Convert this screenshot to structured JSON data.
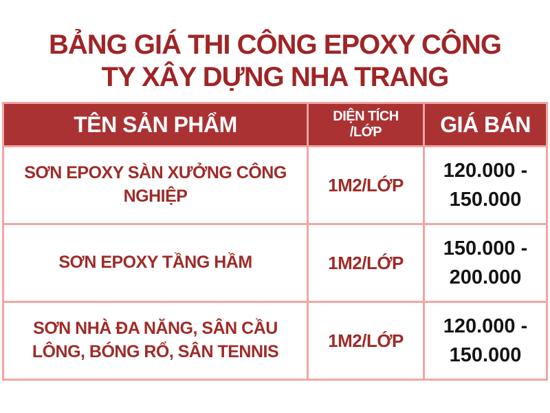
{
  "title": {
    "line1": "BẢNG GIÁ THI CÔNG EPOXY CÔNG",
    "line2": "TY XÂY DỰNG NHA TRANG"
  },
  "table": {
    "headers": [
      "TÊN SẢN PHẨM",
      "DIỆN TÍCH /LỚP",
      "GIÁ BÁN"
    ],
    "rows": [
      {
        "product": "SƠN EPOXY SÀN XƯỞNG CÔNG NGHIỆP",
        "area": "1M2/LỚP",
        "price": "120.000 - 150.000"
      },
      {
        "product": "SƠN EPOXY TẦNG HẦM",
        "area": "1M2/LỚP",
        "price": "150.000 - 200.000"
      },
      {
        "product": "SƠN NHÀ ĐA NĂNG, SÂN CẦU LÔNG, BÓNG RỔ, SÂN TENNIS",
        "area": "1M2/LỚP",
        "price": "120.000 - 150.000"
      }
    ]
  },
  "colors": {
    "title_text": "#9F2527",
    "header_bg": "#AA3233",
    "header_text": "#FFFFFF",
    "red_text": "#9E2B28",
    "price_text": "#141414",
    "grid_border": "#F2A5A1",
    "page_bg": "#FFFFFF"
  }
}
